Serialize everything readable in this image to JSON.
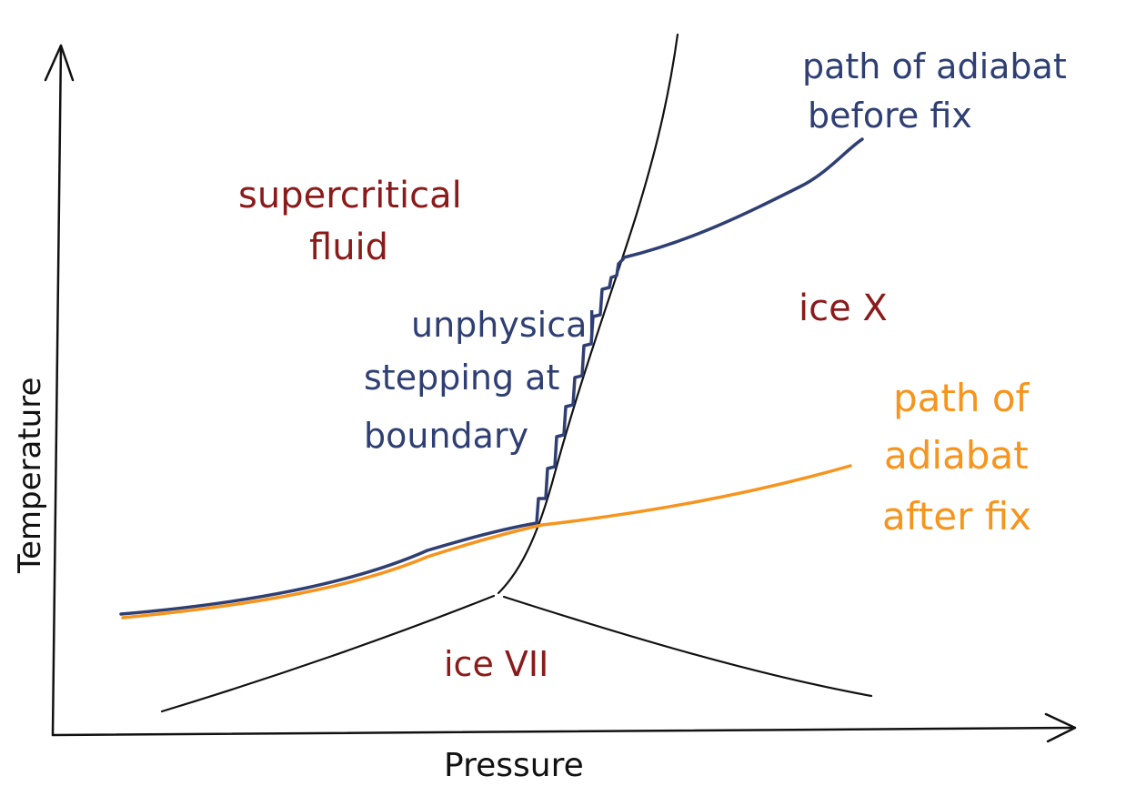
{
  "axes": {
    "x_label": "Pressure",
    "y_label": "Temperature"
  },
  "regions": {
    "supercritical": [
      "supercritical",
      "fluid"
    ],
    "ice_x": "ice X",
    "ice_vii": "ice VII"
  },
  "annotations": {
    "before_fix": [
      "path of adiabat",
      "before fix"
    ],
    "stepping": [
      "unphysical",
      "stepping at",
      "boundary"
    ],
    "after_fix": [
      "path of",
      "adiabat",
      "after fix"
    ]
  },
  "colors": {
    "region_text": "#8b1a1a",
    "before_fix": "#2f3f73",
    "after_fix": "#f7941d",
    "phase_boundary": "#111111"
  }
}
